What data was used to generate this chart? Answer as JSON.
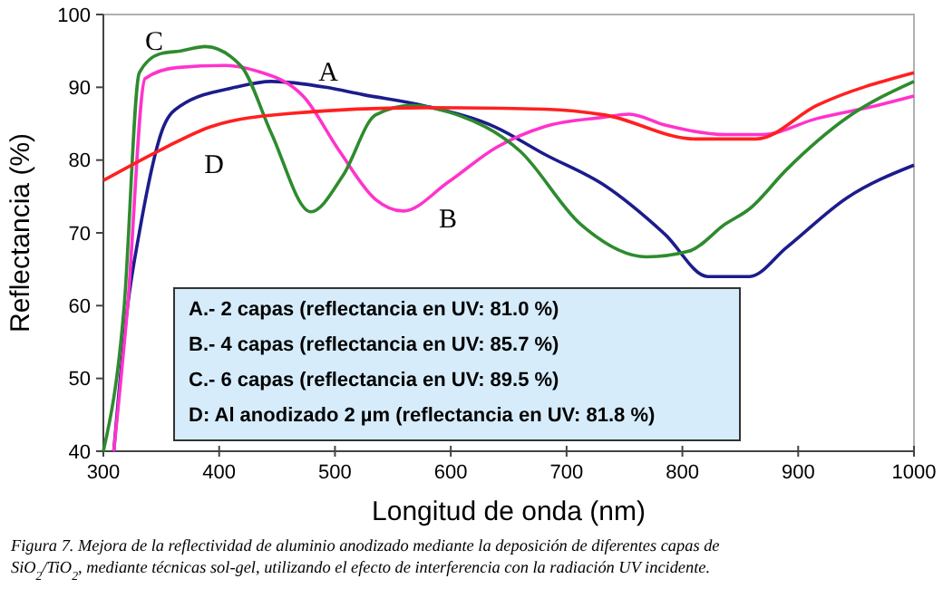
{
  "chart_data": {
    "type": "line",
    "xlabel": "Longitud de onda (nm)",
    "ylabel": "Reflectancia (%)",
    "xlim": [
      300,
      1000
    ],
    "ylim": [
      40,
      100
    ],
    "xticks": [
      300,
      400,
      500,
      600,
      700,
      800,
      900,
      1000
    ],
    "yticks": [
      40,
      50,
      60,
      70,
      80,
      90,
      100
    ],
    "grid": false,
    "marker": "none",
    "line_style": "solid",
    "series": [
      {
        "name": "A",
        "color": "#1c1c8c",
        "x": [
          309,
          321,
          331,
          352,
          367,
          414,
          445,
          492,
          524,
          576,
          639,
          681,
          733,
          785,
          822,
          858,
          890,
          942,
          1000
        ],
        "values": [
          40,
          60,
          70,
          84.6,
          87.5,
          90,
          90.8,
          90,
          89,
          87.5,
          84.5,
          80.8,
          76.5,
          69.8,
          64,
          64,
          68,
          74.8,
          79.3
        ]
      },
      {
        "name": "B",
        "color": "#ff33cc",
        "x": [
          309,
          321,
          336,
          363,
          405,
          431,
          473,
          504,
          535,
          559,
          598,
          639,
          681,
          733,
          754,
          785,
          838,
          869,
          916,
          968,
          1000
        ],
        "values": [
          40,
          60,
          91.2,
          92.7,
          93,
          92.3,
          88.7,
          81.2,
          74.6,
          73,
          77,
          81.7,
          84.6,
          85.9,
          86.3,
          84.8,
          83.5,
          83.5,
          85.7,
          87.5,
          88.8
        ]
      },
      {
        "name": "C",
        "color": "#2e8b2e",
        "x": [
          300,
          318,
          331,
          349,
          367,
          388,
          419,
          445,
          479,
          507,
          535,
          566,
          598,
          660,
          712,
          769,
          806,
          837,
          858,
          890,
          942,
          1000
        ],
        "values": [
          40,
          60,
          92,
          94.6,
          95,
          95.6,
          92.9,
          83.7,
          72.9,
          77.9,
          86.2,
          87.5,
          86.6,
          81.2,
          71.2,
          66.7,
          67.5,
          71.2,
          73.3,
          78.7,
          85.8,
          90.8
        ]
      },
      {
        "name": "D",
        "color": "#ff2020",
        "x": [
          300,
          352,
          393,
          461,
          576,
          681,
          733,
          811,
          864,
          916,
          1000
        ],
        "values": [
          77.2,
          81.6,
          84.6,
          86.4,
          87.2,
          87,
          86.2,
          82.9,
          82.9,
          87.5,
          92
        ]
      }
    ],
    "annotations": [
      "A.-  2 capas (reflectancia en UV: 81.0 %)",
      "B.-  4 capas (reflectancia en UV: 85.7 %)",
      "C.-  6 capas (reflectancia en UV: 89.5 %)",
      "D:  Al anodizado 2 µm (reflectancia en UV: 81.8 %)",
      "Figura 7. Mejora de la reflectividad de aluminio anodizado mediante la deposición de diferentes capas de\nSiO$_{2}$/TiO$_{2}$, mediante técnicas sol-gel, utilizando el efecto de interferencia con la radiación UV incidente."
    ]
  }
}
